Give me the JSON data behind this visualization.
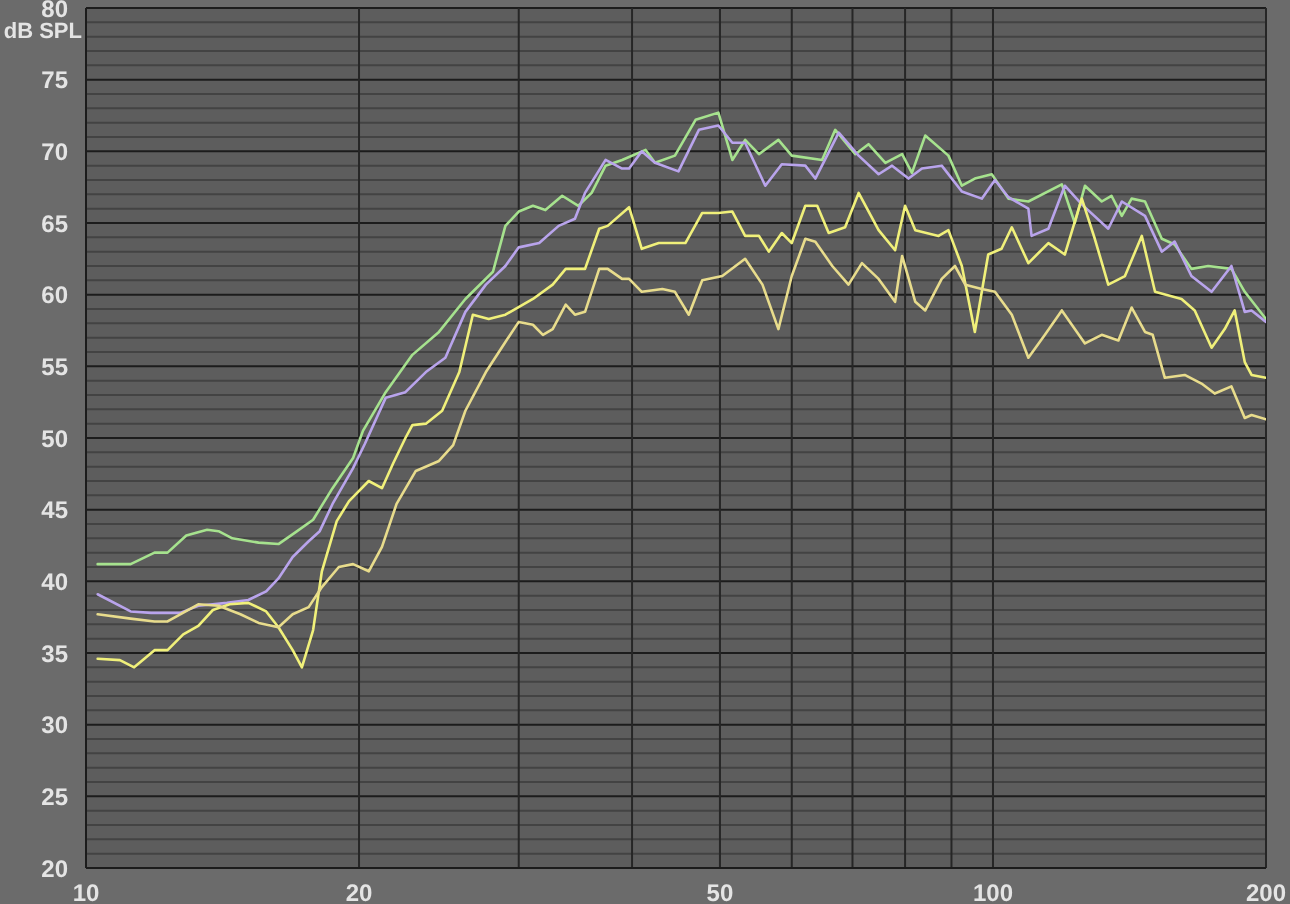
{
  "chart_data": {
    "type": "line",
    "ylabel": "dB SPL",
    "log": "x",
    "grid": true,
    "xlim": [
      10,
      200
    ],
    "xticks": [
      10,
      20,
      {
        "value": 30,
        "label": null
      },
      {
        "value": 40,
        "label": null
      },
      50,
      {
        "value": 60,
        "label": null
      },
      {
        "value": 70,
        "label": null
      },
      {
        "value": 80,
        "label": null
      },
      {
        "value": 90,
        "label": null
      },
      100,
      200
    ],
    "ylim": [
      20,
      80
    ],
    "yticks": [
      20,
      {
        "value": 21,
        "label": null
      },
      {
        "value": 22,
        "label": null
      },
      {
        "value": 23,
        "label": null
      },
      {
        "value": 24,
        "label": null
      },
      25,
      {
        "value": 26,
        "label": null
      },
      {
        "value": 27,
        "label": null
      },
      {
        "value": 28,
        "label": null
      },
      {
        "value": 29,
        "label": null
      },
      30,
      {
        "value": 31,
        "label": null
      },
      {
        "value": 32,
        "label": null
      },
      {
        "value": 33,
        "label": null
      },
      {
        "value": 34,
        "label": null
      },
      35,
      {
        "value": 36,
        "label": null
      },
      {
        "value": 37,
        "label": null
      },
      {
        "value": 38,
        "label": null
      },
      {
        "value": 39,
        "label": null
      },
      40,
      {
        "value": 41,
        "label": null
      },
      {
        "value": 42,
        "label": null
      },
      {
        "value": 43,
        "label": null
      },
      {
        "value": 44,
        "label": null
      },
      45,
      {
        "value": 46,
        "label": null
      },
      {
        "value": 47,
        "label": null
      },
      {
        "value": 48,
        "label": null
      },
      {
        "value": 49,
        "label": null
      },
      50,
      {
        "value": 51,
        "label": null
      },
      {
        "value": 52,
        "label": null
      },
      {
        "value": 53,
        "label": null
      },
      {
        "value": 54,
        "label": null
      },
      55,
      {
        "value": 56,
        "label": null
      },
      {
        "value": 57,
        "label": null
      },
      {
        "value": 58,
        "label": null
      },
      {
        "value": 59,
        "label": null
      },
      60,
      {
        "value": 61,
        "label": null
      },
      {
        "value": 62,
        "label": null
      },
      {
        "value": 63,
        "label": null
      },
      {
        "value": 64,
        "label": null
      },
      65,
      {
        "value": 66,
        "label": null
      },
      {
        "value": 67,
        "label": null
      },
      {
        "value": 68,
        "label": null
      },
      {
        "value": 69,
        "label": null
      },
      70,
      {
        "value": 71,
        "label": null
      },
      {
        "value": 72,
        "label": null
      },
      {
        "value": 73,
        "label": null
      },
      {
        "value": 74,
        "label": null
      },
      75,
      {
        "value": 76,
        "label": null
      },
      {
        "value": 77,
        "label": null
      },
      {
        "value": 78,
        "label": null
      },
      {
        "value": 79,
        "label": null
      },
      80
    ],
    "series": [
      {
        "color": "#a6e28e",
        "x": [
          10.3,
          11.2,
          11.9,
          12.3,
          12.9,
          13.6,
          14.0,
          14.5,
          15.5,
          16.3,
          17.0,
          17.8,
          18.7,
          19.7,
          20.2,
          21.4,
          22.9,
          24.5,
          26.2,
          28.1,
          29.0,
          30.0,
          31.1,
          32.1,
          33.5,
          34.9,
          36.1,
          37.4,
          39.0,
          41.4,
          42.4,
          44.6,
          47.0,
          49.8,
          51.6,
          53.3,
          55.2,
          58.0,
          60.0,
          64.8,
          67.0,
          70.5,
          72.9,
          76.1,
          79.4,
          81.4,
          84.2,
          89.3,
          92.4,
          95.5,
          99.7,
          104.0,
          109.4,
          119.1,
          123.1,
          126.3,
          131.8,
          135.1,
          138.7,
          142.2,
          147.1,
          153.5,
          158.6,
          165.5,
          172.7,
          183.2,
          189.5,
          200
        ],
        "values": [
          41.2,
          41.2,
          42.0,
          42.0,
          43.2,
          43.6,
          43.5,
          43.0,
          42.7,
          42.6,
          43.4,
          44.3,
          46.5,
          48.6,
          50.5,
          53.2,
          55.8,
          57.4,
          59.7,
          61.6,
          64.8,
          65.8,
          66.2,
          65.9,
          66.9,
          66.2,
          67.1,
          69.0,
          69.4,
          70.1,
          69.2,
          69.7,
          72.2,
          72.7,
          69.4,
          70.8,
          69.8,
          70.8,
          69.7,
          69.4,
          71.5,
          69.8,
          70.5,
          69.2,
          69.8,
          68.5,
          71.1,
          69.7,
          67.6,
          68.1,
          68.4,
          66.7,
          66.5,
          67.7,
          65.0,
          67.6,
          66.5,
          66.9,
          65.5,
          66.7,
          66.5,
          63.9,
          63.5,
          61.8,
          62.0,
          61.8,
          60.2,
          58.3
        ]
      },
      {
        "color": "#b9a4ec",
        "x": [
          10.3,
          11.2,
          11.8,
          12.7,
          13.3,
          14.3,
          15.1,
          15.8,
          16.3,
          16.9,
          17.6,
          18.1,
          18.7,
          19.7,
          20.3,
          21.4,
          22.5,
          23.7,
          24.9,
          26.2,
          27.6,
          29.0,
          30.0,
          31.6,
          33.2,
          34.6,
          35.5,
          37.4,
          39.0,
          39.7,
          41.0,
          42.4,
          45.0,
          47.4,
          49.8,
          51.6,
          53.3,
          56.1,
          58.5,
          62.1,
          63.7,
          67.6,
          71.1,
          74.8,
          77.4,
          80.7,
          83.5,
          87.8,
          92.4,
          97.2,
          100.5,
          104.0,
          109.4,
          110.3,
          115.1,
          120.0,
          125.3,
          134.0,
          138.7,
          147.1,
          153.5,
          158.6,
          165.5,
          174.2,
          183.2,
          189.5,
          192.8,
          200
        ],
        "values": [
          39.1,
          37.9,
          37.8,
          37.8,
          38.3,
          38.5,
          38.7,
          39.3,
          40.2,
          41.7,
          42.8,
          43.5,
          45.4,
          47.9,
          49.6,
          52.8,
          53.2,
          54.6,
          55.6,
          58.8,
          60.7,
          62.0,
          63.3,
          63.6,
          64.8,
          65.3,
          67.1,
          69.4,
          68.8,
          68.8,
          70.0,
          69.2,
          68.6,
          71.5,
          71.8,
          70.6,
          70.6,
          67.6,
          69.1,
          69.0,
          68.1,
          71.3,
          69.7,
          68.4,
          69.0,
          68.1,
          68.8,
          69.0,
          67.2,
          66.7,
          68.0,
          66.8,
          66.0,
          64.1,
          64.6,
          67.6,
          66.3,
          64.6,
          66.5,
          65.5,
          63.0,
          63.7,
          61.3,
          60.2,
          62.0,
          58.8,
          58.9,
          58.1
        ]
      },
      {
        "color": "#f0f07a",
        "x": [
          10.3,
          10.9,
          11.3,
          11.9,
          12.3,
          12.8,
          13.3,
          13.8,
          14.4,
          15.1,
          15.8,
          16.3,
          16.9,
          17.3,
          17.8,
          18.2,
          18.9,
          19.5,
          20.5,
          21.2,
          21.8,
          22.5,
          22.9,
          23.7,
          24.7,
          25.8,
          26.7,
          27.8,
          29.0,
          31.1,
          32.7,
          33.8,
          35.5,
          36.8,
          37.6,
          39.7,
          41.0,
          42.8,
          45.8,
          47.8,
          49.8,
          51.6,
          53.3,
          55.2,
          56.6,
          58.5,
          60.0,
          62.1,
          64.0,
          65.9,
          68.7,
          71.1,
          74.8,
          78.0,
          80.0,
          82.1,
          87.1,
          89.3,
          92.4,
          95.5,
          98.8,
          102.2,
          104.9,
          109.4,
          115.1,
          120.0,
          125.3,
          129.5,
          134.0,
          139.8,
          145.9,
          150.9,
          161.4,
          166.9,
          174.2,
          180.1,
          184.7,
          189.5,
          192.8,
          200
        ],
        "values": [
          34.6,
          34.5,
          34.0,
          35.2,
          35.2,
          36.3,
          36.9,
          38.0,
          38.4,
          38.5,
          37.9,
          36.8,
          35.2,
          34.0,
          36.6,
          40.7,
          44.2,
          45.6,
          47.0,
          46.5,
          48.2,
          50.0,
          50.9,
          51.0,
          51.9,
          54.6,
          58.6,
          58.3,
          58.6,
          59.7,
          60.7,
          61.8,
          61.8,
          64.6,
          64.8,
          66.1,
          63.2,
          63.6,
          63.6,
          65.7,
          65.7,
          65.8,
          64.1,
          64.1,
          63.0,
          64.3,
          63.6,
          66.2,
          66.2,
          64.3,
          64.7,
          67.1,
          64.5,
          63.1,
          66.2,
          64.5,
          64.1,
          64.5,
          62.0,
          57.4,
          62.8,
          63.2,
          64.7,
          62.2,
          63.6,
          62.8,
          66.7,
          63.9,
          60.7,
          61.3,
          64.1,
          60.2,
          59.7,
          58.9,
          56.3,
          57.6,
          58.9,
          55.3,
          54.4,
          54.2
        ]
      },
      {
        "color": "#e8dc8c",
        "x": [
          10.3,
          11.2,
          11.9,
          12.3,
          13.3,
          14.0,
          14.8,
          15.5,
          16.3,
          16.9,
          17.6,
          18.2,
          19.0,
          19.7,
          20.5,
          21.2,
          22.0,
          23.1,
          24.5,
          25.4,
          26.2,
          27.6,
          29.0,
          30.0,
          31.1,
          31.9,
          32.7,
          33.8,
          34.6,
          35.5,
          36.8,
          37.6,
          39.0,
          39.7,
          41.0,
          43.2,
          44.6,
          46.2,
          47.8,
          50.3,
          53.3,
          55.7,
          58.0,
          60.0,
          62.1,
          63.7,
          66.5,
          69.3,
          71.7,
          74.8,
          78.0,
          79.4,
          82.1,
          84.2,
          87.8,
          90.8,
          93.2,
          97.2,
          100.5,
          104.9,
          109.4,
          114.1,
          119.1,
          126.3,
          131.8,
          137.5,
          142.2,
          147.1,
          150.0,
          154.7,
          162.7,
          169.8,
          175.6,
          183.2,
          189.5,
          192.8,
          200
        ],
        "values": [
          37.7,
          37.4,
          37.2,
          37.2,
          38.4,
          38.3,
          37.7,
          37.1,
          36.8,
          37.7,
          38.2,
          39.6,
          41.0,
          41.2,
          40.7,
          42.4,
          45.4,
          47.7,
          48.4,
          49.5,
          51.9,
          54.6,
          56.7,
          58.1,
          57.9,
          57.2,
          57.6,
          59.3,
          58.6,
          58.8,
          61.8,
          61.8,
          61.1,
          61.1,
          60.2,
          60.4,
          60.2,
          58.6,
          61.0,
          61.3,
          62.5,
          60.7,
          57.6,
          61.3,
          63.9,
          63.7,
          62.0,
          60.7,
          62.2,
          61.1,
          59.5,
          62.7,
          59.5,
          58.9,
          61.1,
          62.0,
          60.7,
          60.4,
          60.2,
          58.6,
          55.6,
          57.2,
          58.9,
          56.6,
          57.2,
          56.8,
          59.1,
          57.4,
          57.2,
          54.2,
          54.4,
          53.8,
          53.1,
          53.6,
          51.4,
          51.6,
          51.3
        ]
      }
    ]
  }
}
